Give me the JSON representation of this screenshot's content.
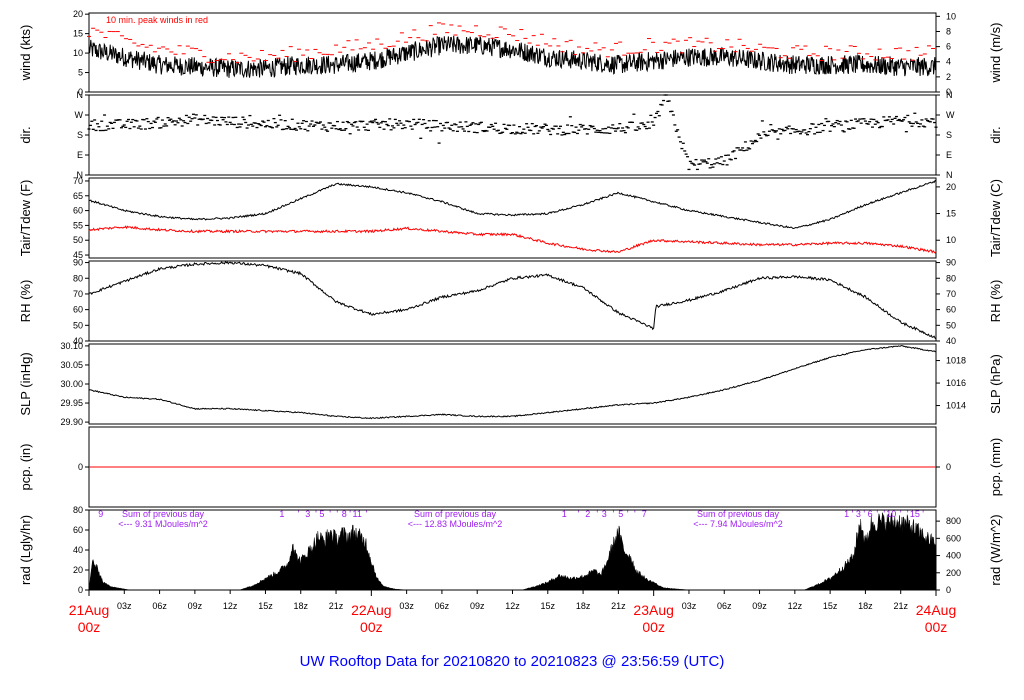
{
  "title": "UW Rooftop Data for 20210820  to  20210823 @ 23:56:59  (UTC)",
  "x_ticks": [
    "03z",
    "06z",
    "09z",
    "12z",
    "15z",
    "18z",
    "21z",
    "03z",
    "06z",
    "09z",
    "12z",
    "15z",
    "18z",
    "21z",
    "03z",
    "06z",
    "09z",
    "12z",
    "15z",
    "18z",
    "21z"
  ],
  "date_labels": [
    {
      "line1": "21Aug",
      "line2": "00z"
    },
    {
      "line1": "22Aug",
      "line2": "00z"
    },
    {
      "line1": "23Aug",
      "line2": "00z"
    },
    {
      "line1": "24Aug",
      "line2": "00z"
    }
  ],
  "chart_data": [
    {
      "type": "line",
      "name": "wind",
      "ylabel": "wind (kts)",
      "ylabel_right": "wind (m/s)",
      "ylim": [
        0,
        20.3
      ],
      "yticks": [
        0,
        5,
        10,
        15,
        20
      ],
      "yticks_right_values": [
        0,
        2,
        4,
        6,
        8,
        10
      ],
      "right_factor": 1.9438,
      "annotation": "10 min. peak winds in red",
      "x_hours": [
        0,
        3,
        6,
        9,
        12,
        15,
        18,
        21,
        24,
        27,
        30,
        33,
        36,
        39,
        42,
        45,
        48,
        51,
        54,
        57,
        60,
        63,
        66,
        69,
        72
      ],
      "mean": [
        11,
        9,
        7,
        6.5,
        6,
        6,
        7,
        7,
        8,
        10,
        12,
        12,
        11,
        9,
        8,
        7,
        8,
        9,
        9,
        8,
        7,
        7,
        7,
        6.5,
        6.5
      ],
      "peak": [
        16,
        13,
        11,
        10,
        9,
        9,
        10,
        11,
        12,
        14,
        16,
        16,
        15,
        13,
        11,
        11,
        12,
        12,
        12,
        11,
        10,
        10,
        10,
        10,
        10
      ],
      "series": [
        {
          "name": "wind (kts)",
          "color": "#000000"
        },
        {
          "name": "10 min. peak winds",
          "color": "#ff0000"
        }
      ]
    },
    {
      "type": "scatter",
      "name": "dir",
      "ylabel": "dir.",
      "ylabel_right": "dir.",
      "ylim": [
        0,
        360
      ],
      "ytick_values": [
        0,
        90,
        180,
        270,
        360
      ],
      "ytick_labels": [
        "N",
        "E",
        "S",
        "W",
        "N"
      ],
      "x_hours": [
        0,
        3,
        6,
        9,
        12,
        15,
        18,
        21,
        24,
        27,
        30,
        33,
        36,
        39,
        42,
        45,
        48,
        49,
        51,
        54,
        57,
        60,
        62,
        63,
        66,
        69,
        72
      ],
      "values": [
        225,
        225,
        235,
        250,
        240,
        230,
        225,
        220,
        225,
        230,
        220,
        215,
        210,
        205,
        205,
        210,
        220,
        360,
        45,
        60,
        170,
        200,
        210,
        220,
        230,
        245,
        240
      ]
    },
    {
      "type": "line",
      "name": "temp",
      "ylabel": "Tair/Tdew (F)",
      "ylabel_right": "Tair/Tdew (C)",
      "ylim": [
        44,
        71
      ],
      "yticks": [
        45,
        50,
        55,
        60,
        65,
        70
      ],
      "yticks_right_values": [
        10,
        15,
        20
      ],
      "x_hours": [
        0,
        3,
        6,
        9,
        12,
        15,
        18,
        21,
        24,
        27,
        30,
        33,
        36,
        39,
        42,
        45,
        48,
        51,
        54,
        57,
        60,
        63,
        66,
        69,
        72
      ],
      "tair": [
        63.5,
        60,
        58,
        57,
        57.5,
        59,
        64,
        69,
        68,
        66,
        63,
        59,
        58.5,
        59,
        62,
        66,
        63,
        60,
        58,
        56,
        54,
        57,
        62,
        66,
        70
      ],
      "tdew": [
        53.5,
        54.5,
        53.5,
        53,
        53,
        53,
        53,
        53,
        53,
        54,
        53,
        52,
        52,
        49,
        47,
        46,
        50,
        49.5,
        49,
        48.5,
        48.5,
        49,
        49,
        48,
        46
      ],
      "series": [
        {
          "name": "Tair",
          "color": "#000000"
        },
        {
          "name": "Tdew",
          "color": "#ff0000"
        }
      ]
    },
    {
      "type": "line",
      "name": "rh",
      "ylabel": "RH (%)",
      "ylabel_right": "RH (%)",
      "ylim": [
        40,
        91
      ],
      "yticks": [
        40,
        50,
        60,
        70,
        80,
        90
      ],
      "yticks_right_values": [
        40,
        50,
        60,
        70,
        80,
        90
      ],
      "x_hours": [
        0,
        3,
        6,
        9,
        12,
        15,
        18,
        21,
        24,
        27,
        30,
        33,
        36,
        39,
        42,
        45,
        48,
        48.2,
        51,
        54,
        57,
        60,
        63,
        66,
        69,
        72
      ],
      "values": [
        70,
        78,
        86,
        89,
        90,
        88,
        83,
        65,
        57,
        60,
        68,
        72,
        80,
        82,
        74,
        58,
        48,
        62,
        66,
        72,
        80,
        81,
        79,
        68,
        52,
        42
      ]
    },
    {
      "type": "line",
      "name": "slp",
      "ylabel": "SLP (inHg)",
      "ylabel_right": "SLP (hPa)",
      "ylim": [
        29.895,
        30.105
      ],
      "yticks": [
        29.9,
        29.95,
        30.0,
        30.05,
        30.1
      ],
      "ytick_labels": [
        "29.90",
        "29.95",
        "30.00",
        "30.05",
        "30.10"
      ],
      "yticks_right_values": [
        1014,
        1016,
        1018
      ],
      "x_hours": [
        0,
        3,
        6,
        9,
        12,
        15,
        18,
        21,
        24,
        27,
        30,
        33,
        36,
        39,
        42,
        45,
        48,
        51,
        54,
        57,
        60,
        63,
        66,
        69,
        72
      ],
      "values": [
        29.985,
        29.965,
        29.96,
        29.935,
        29.935,
        29.93,
        29.925,
        29.915,
        29.91,
        29.915,
        29.92,
        29.915,
        29.915,
        29.925,
        29.935,
        29.945,
        29.95,
        29.965,
        29.985,
        30.01,
        30.04,
        30.07,
        30.09,
        30.1,
        30.085
      ]
    },
    {
      "type": "line",
      "name": "pcp",
      "ylabel": "pcp. (in)",
      "ylabel_right": "pcp. (mm)",
      "ylim": [
        -1,
        1
      ],
      "yticks": [
        0
      ],
      "yticks_right_values": [
        0
      ],
      "x_hours": [
        0,
        72
      ],
      "values": [
        0,
        0
      ]
    },
    {
      "type": "area",
      "name": "rad",
      "ylabel": "rad (Lgly/hr)",
      "ylabel_right": "rad (W/m^2)",
      "ylim": [
        0,
        80
      ],
      "yticks": [
        0,
        20,
        40,
        60,
        80
      ],
      "yticks_right_values": [
        0,
        200,
        400,
        600,
        800
      ],
      "right_factor": 0.0861,
      "x_hours": [
        0,
        0.3,
        0.8,
        1.2,
        1.8,
        2.5,
        3.5,
        4,
        12.8,
        14,
        15,
        16,
        17,
        17.3,
        17.6,
        18,
        19,
        19.5,
        20,
        20.5,
        21,
        21.5,
        22,
        22.5,
        23,
        23.5,
        24,
        24.5,
        25,
        26,
        27,
        36.8,
        38,
        39,
        40,
        41,
        42,
        43,
        43.5,
        44,
        44.5,
        45,
        45.5,
        46,
        46.5,
        47,
        47.5,
        48,
        48.5,
        49,
        50,
        51,
        60.8,
        62,
        63,
        64,
        65,
        65.3,
        65.6,
        66,
        66.5,
        67,
        68,
        69,
        70,
        71,
        72
      ],
      "values": [
        0,
        30,
        20,
        8,
        4,
        2,
        0,
        0,
        0,
        5,
        12,
        18,
        28,
        50,
        35,
        30,
        45,
        55,
        50,
        60,
        52,
        58,
        55,
        60,
        55,
        50,
        30,
        12,
        4,
        1,
        0,
        0,
        4,
        8,
        15,
        12,
        14,
        20,
        15,
        28,
        45,
        60,
        40,
        35,
        20,
        15,
        10,
        8,
        4,
        2,
        1,
        0,
        0,
        6,
        12,
        22,
        35,
        55,
        70,
        48,
        68,
        70,
        70,
        70,
        65,
        55,
        48
      ],
      "day_sums": [
        "9.31",
        "12.83",
        "7.94"
      ],
      "sum_label": "Sum of previous day",
      "sum_units": "MJoules/m^2",
      "hour_marks": [
        {
          "t": 1,
          "label": "9"
        },
        {
          "t": 16.4,
          "label": "1"
        },
        {
          "t": 17.8,
          "label": "'"
        },
        {
          "t": 18.6,
          "label": "3"
        },
        {
          "t": 19.3,
          "label": "'"
        },
        {
          "t": 19.8,
          "label": "5"
        },
        {
          "t": 20.5,
          "label": "'"
        },
        {
          "t": 21.1,
          "label": "'"
        },
        {
          "t": 21.7,
          "label": "8"
        },
        {
          "t": 22.2,
          "label": "'"
        },
        {
          "t": 22.8,
          "label": "11"
        },
        {
          "t": 23.6,
          "label": "'"
        },
        {
          "t": 40.4,
          "label": "1"
        },
        {
          "t": 41.6,
          "label": "'"
        },
        {
          "t": 42.4,
          "label": "2"
        },
        {
          "t": 43.2,
          "label": "'"
        },
        {
          "t": 43.8,
          "label": "3"
        },
        {
          "t": 44.6,
          "label": "'"
        },
        {
          "t": 45.2,
          "label": "5"
        },
        {
          "t": 45.8,
          "label": "'"
        },
        {
          "t": 46.4,
          "label": "'"
        },
        {
          "t": 47.2,
          "label": "7"
        },
        {
          "t": 64.4,
          "label": "1"
        },
        {
          "t": 64.9,
          "label": "'"
        },
        {
          "t": 65.4,
          "label": "3"
        },
        {
          "t": 65.9,
          "label": "'"
        },
        {
          "t": 66.4,
          "label": "6"
        },
        {
          "t": 67,
          "label": "'"
        },
        {
          "t": 67.6,
          "label": "'"
        },
        {
          "t": 68.2,
          "label": "10"
        },
        {
          "t": 69,
          "label": "'"
        },
        {
          "t": 69.6,
          "label": "'"
        },
        {
          "t": 70.2,
          "label": "15"
        },
        {
          "t": 70.9,
          "label": "'"
        }
      ]
    }
  ]
}
